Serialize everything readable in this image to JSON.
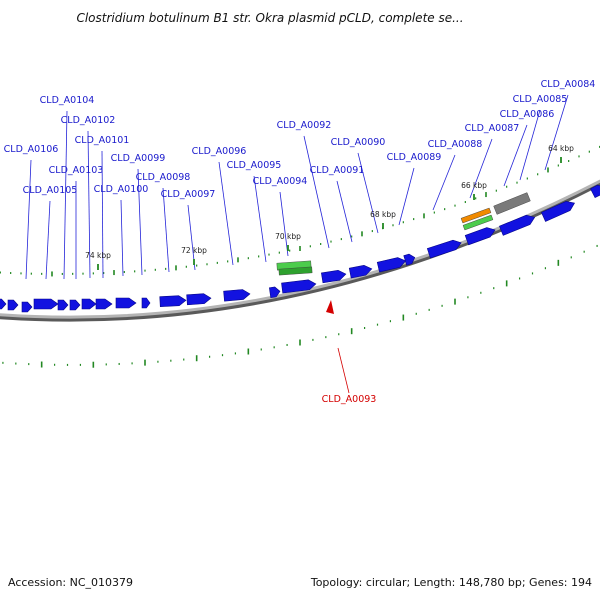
{
  "title": "Clostridium botulinum B1 str. Okra plasmid pCLD, complete se...",
  "footer": {
    "accession": "Accession: NC_010379",
    "summary": "Topology: circular; Length: 148,780 bp; Genes: 194"
  },
  "colors": {
    "backbone": "#8c8c8c",
    "gene_forward": "#1212e0",
    "gene_reverse": "#d40000",
    "feature_green": "#33bb33",
    "feature_orange": "#f08a00",
    "feature_gray": "#666666",
    "tick": "#228822",
    "label": "#1a1acc"
  },
  "genome": {
    "length_bp": 148780,
    "topology": "circular",
    "gene_count": 194
  },
  "ruler_labels": [
    {
      "kbp": 74,
      "text": "74 kbp"
    },
    {
      "kbp": 72,
      "text": "72 kbp"
    },
    {
      "kbp": 70,
      "text": "70 kbp"
    },
    {
      "kbp": 68,
      "text": "68 kbp"
    },
    {
      "kbp": 66,
      "text": "66 kbp"
    },
    {
      "kbp": 64,
      "text": "64 kbp"
    }
  ],
  "gene_labels": [
    {
      "name": "CLD_A0084",
      "selected": false
    },
    {
      "name": "CLD_A0085",
      "selected": false
    },
    {
      "name": "CLD_A0086",
      "selected": false
    },
    {
      "name": "CLD_A0087",
      "selected": false
    },
    {
      "name": "CLD_A0088",
      "selected": false
    },
    {
      "name": "CLD_A0089",
      "selected": false
    },
    {
      "name": "CLD_A0090",
      "selected": false
    },
    {
      "name": "CLD_A0091",
      "selected": false
    },
    {
      "name": "CLD_A0092",
      "selected": false
    },
    {
      "name": "CLD_A0093",
      "selected": true
    },
    {
      "name": "CLD_A0094",
      "selected": false
    },
    {
      "name": "CLD_A0095",
      "selected": false
    },
    {
      "name": "CLD_A0096",
      "selected": false
    },
    {
      "name": "CLD_A0097",
      "selected": false
    },
    {
      "name": "CLD_A0098",
      "selected": false
    },
    {
      "name": "CLD_A0099",
      "selected": false
    },
    {
      "name": "CLD_A0100",
      "selected": false
    },
    {
      "name": "CLD_A0101",
      "selected": false
    },
    {
      "name": "CLD_A0102",
      "selected": false
    },
    {
      "name": "CLD_A0103",
      "selected": false
    },
    {
      "name": "CLD_A0104",
      "selected": false
    },
    {
      "name": "CLD_A0105",
      "selected": false
    },
    {
      "name": "CLD_A0106",
      "selected": false
    }
  ]
}
